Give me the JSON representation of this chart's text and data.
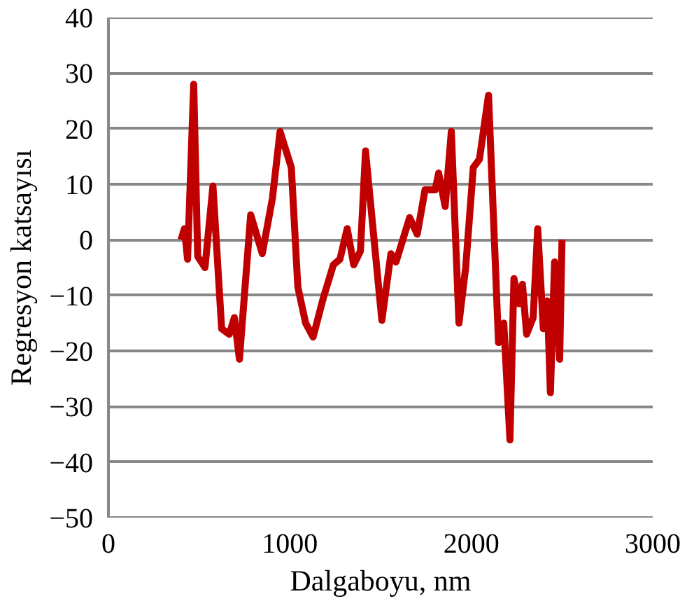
{
  "chart_data": {
    "type": "line",
    "xlabel": "Dalgaboyu, nm",
    "ylabel": "Regresyon katsayısı",
    "xlim": [
      0,
      3000
    ],
    "xticks": [
      0,
      1000,
      2000,
      3000
    ],
    "ylim": [
      -50,
      40
    ],
    "yticks": [
      -50,
      -40,
      -30,
      -20,
      -10,
      0,
      10,
      20,
      30,
      40
    ],
    "grid": "y",
    "series": [
      {
        "color": "#c00000",
        "x": [
          400,
          419,
          436,
          470,
          492,
          532,
          576,
          624,
          666,
          694,
          722,
          784,
          848,
          904,
          946,
          1008,
          1044,
          1087,
          1128,
          1184,
          1240,
          1276,
          1316,
          1352,
          1389,
          1417,
          1473,
          1507,
          1557,
          1585,
          1618,
          1660,
          1702,
          1745,
          1801,
          1820,
          1856,
          1890,
          1932,
          1969,
          2011,
          2045,
          2095,
          2150,
          2179,
          2213,
          2235,
          2263,
          2282,
          2305,
          2341,
          2366,
          2397,
          2419,
          2436,
          2459,
          2487,
          2500
        ],
        "values": [
          0,
          2,
          -3.5,
          28,
          -3,
          -5,
          9.7,
          -16,
          -17,
          -14,
          -21.5,
          4.5,
          -2.5,
          7.5,
          19.5,
          13,
          -8.5,
          -15,
          -17.5,
          -10.5,
          -4.5,
          -3.5,
          2,
          -4.5,
          -2,
          16,
          -3,
          -14.5,
          -2.5,
          -4,
          -0.5,
          4,
          1,
          9,
          9,
          12,
          6,
          19.5,
          -15,
          -5,
          13,
          14.5,
          26,
          -18.5,
          -15,
          -36,
          -7,
          -11.5,
          -8,
          -17,
          -14,
          2,
          -16,
          -11,
          -27.5,
          -4,
          -21.5,
          0
        ]
      }
    ]
  }
}
